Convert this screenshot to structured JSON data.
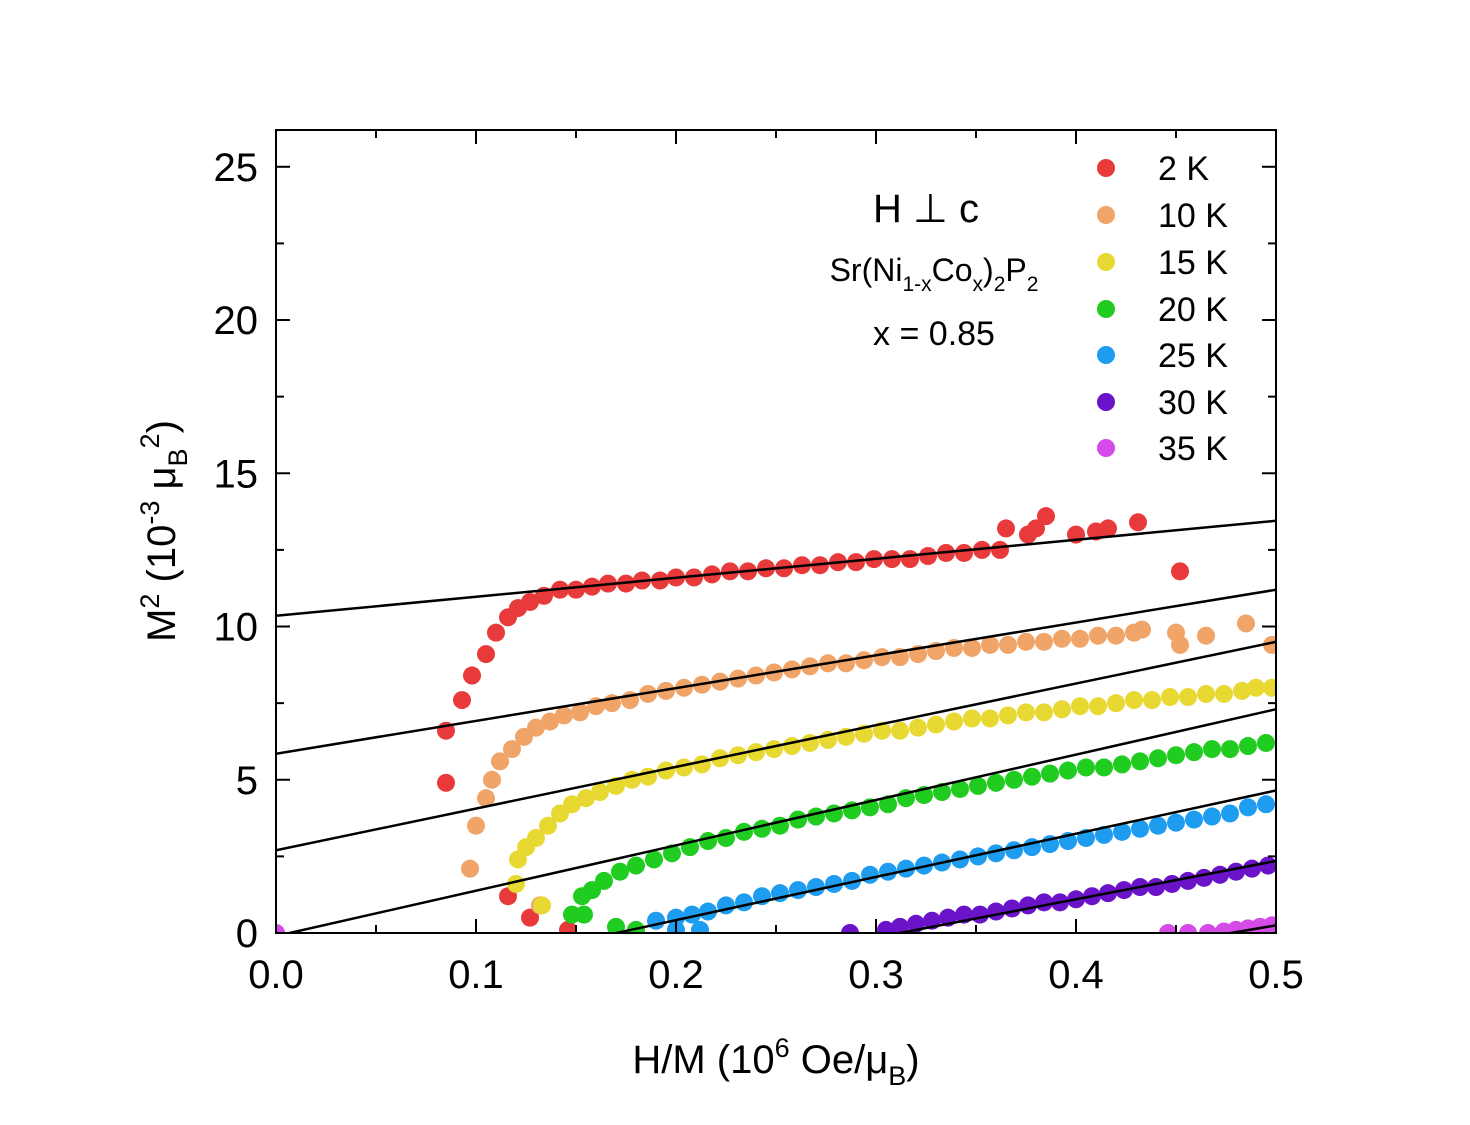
{
  "chart_data": {
    "type": "scatter",
    "title": "",
    "xlabel": {
      "main": "H/M (10",
      "sup": "6",
      "mid": " Oe/μ",
      "sub": "B",
      "end": ")"
    },
    "ylabel": {
      "pre": "M",
      "sup1": "2",
      "mid": " (10",
      "sup2": "-3",
      "mu": " μ",
      "sub": "B",
      "sup3": "2",
      "end": ")"
    },
    "xlim": [
      0,
      0.5
    ],
    "ylim": [
      0,
      26.2
    ],
    "xticks": [
      0.0,
      0.1,
      0.2,
      0.3,
      0.4,
      0.5
    ],
    "xtick_labels": [
      "0.0",
      "0.1",
      "0.2",
      "0.3",
      "0.4",
      "0.5"
    ],
    "yticks": [
      0,
      5,
      10,
      15,
      20,
      25
    ],
    "ytick_labels": [
      "0",
      "5",
      "10",
      "15",
      "20",
      "25"
    ],
    "annotations": {
      "field": "H ⊥ c",
      "compound": {
        "a": "Sr(Ni",
        "b": "1-x",
        "c": "Co",
        "d": "x",
        "e": ")",
        "f": "2",
        "g": "P",
        "h": "2"
      },
      "doping": "x = 0.85"
    },
    "legend_position": "top-right",
    "series": [
      {
        "name": "2 K",
        "color": "#e83a3a",
        "x": [
          0.085,
          0.085,
          0.093,
          0.098,
          0.105,
          0.11,
          0.116,
          0.121,
          0.127,
          0.134,
          0.142,
          0.15,
          0.158,
          0.166,
          0.175,
          0.183,
          0.192,
          0.2,
          0.209,
          0.218,
          0.227,
          0.236,
          0.245,
          0.254,
          0.263,
          0.272,
          0.281,
          0.29,
          0.299,
          0.308,
          0.317,
          0.326,
          0.335,
          0.344,
          0.353,
          0.362,
          0.365,
          0.376,
          0.38,
          0.385,
          0.4,
          0.41,
          0.416,
          0.431,
          0.452,
          0.116,
          0.127,
          0.146
        ],
        "y": [
          4.9,
          6.6,
          7.6,
          8.4,
          9.1,
          9.8,
          10.3,
          10.6,
          10.8,
          11.0,
          11.2,
          11.2,
          11.3,
          11.4,
          11.4,
          11.5,
          11.5,
          11.6,
          11.6,
          11.7,
          11.8,
          11.8,
          11.9,
          11.9,
          12.0,
          12.0,
          12.1,
          12.1,
          12.2,
          12.2,
          12.2,
          12.3,
          12.4,
          12.4,
          12.5,
          12.5,
          13.2,
          13.0,
          13.2,
          13.6,
          13.0,
          13.1,
          13.2,
          13.4,
          11.8,
          1.2,
          0.5,
          0.1
        ],
        "fit": [
          10.35,
          6.2
        ]
      },
      {
        "name": "10 K",
        "color": "#f0a468",
        "x": [
          0.1,
          0.105,
          0.108,
          0.112,
          0.118,
          0.124,
          0.13,
          0.137,
          0.144,
          0.152,
          0.16,
          0.168,
          0.177,
          0.186,
          0.195,
          0.204,
          0.213,
          0.222,
          0.231,
          0.24,
          0.249,
          0.258,
          0.267,
          0.276,
          0.285,
          0.294,
          0.303,
          0.312,
          0.321,
          0.33,
          0.339,
          0.348,
          0.357,
          0.366,
          0.375,
          0.384,
          0.393,
          0.402,
          0.411,
          0.42,
          0.429,
          0.433,
          0.45,
          0.452,
          0.465,
          0.485,
          0.498,
          0.097,
          0.132
        ],
        "y": [
          3.5,
          4.4,
          5.0,
          5.6,
          6.0,
          6.4,
          6.7,
          6.9,
          7.1,
          7.2,
          7.4,
          7.5,
          7.6,
          7.8,
          7.9,
          8.0,
          8.1,
          8.2,
          8.3,
          8.4,
          8.5,
          8.6,
          8.7,
          8.8,
          8.8,
          8.9,
          9.0,
          9.0,
          9.1,
          9.2,
          9.3,
          9.3,
          9.4,
          9.4,
          9.5,
          9.5,
          9.6,
          9.6,
          9.7,
          9.7,
          9.8,
          9.9,
          9.8,
          9.4,
          9.7,
          10.1,
          9.4,
          2.1,
          0.9
        ],
        "fit": [
          5.85,
          10.7
        ]
      },
      {
        "name": "15 K",
        "color": "#e8d832",
        "x": [
          0.121,
          0.125,
          0.13,
          0.136,
          0.142,
          0.148,
          0.155,
          0.162,
          0.17,
          0.178,
          0.186,
          0.195,
          0.204,
          0.213,
          0.222,
          0.231,
          0.24,
          0.249,
          0.258,
          0.267,
          0.276,
          0.285,
          0.294,
          0.303,
          0.312,
          0.321,
          0.33,
          0.339,
          0.348,
          0.357,
          0.366,
          0.375,
          0.384,
          0.393,
          0.402,
          0.411,
          0.42,
          0.429,
          0.438,
          0.447,
          0.456,
          0.465,
          0.474,
          0.483,
          0.49,
          0.498,
          0.12,
          0.133
        ],
        "y": [
          2.4,
          2.8,
          3.1,
          3.5,
          3.9,
          4.2,
          4.4,
          4.6,
          4.8,
          5.0,
          5.1,
          5.3,
          5.4,
          5.5,
          5.7,
          5.8,
          5.9,
          6.0,
          6.1,
          6.2,
          6.3,
          6.4,
          6.5,
          6.6,
          6.6,
          6.7,
          6.8,
          6.9,
          7.0,
          7.0,
          7.1,
          7.2,
          7.2,
          7.3,
          7.4,
          7.4,
          7.5,
          7.6,
          7.6,
          7.7,
          7.7,
          7.8,
          7.8,
          7.9,
          8.0,
          8.0,
          1.6,
          0.9
        ],
        "fit": [
          2.7,
          13.6
        ]
      },
      {
        "name": "20 K",
        "color": "#1fcc1f",
        "x": [
          0.148,
          0.153,
          0.158,
          0.164,
          0.172,
          0.18,
          0.189,
          0.198,
          0.207,
          0.216,
          0.225,
          0.234,
          0.243,
          0.252,
          0.261,
          0.27,
          0.279,
          0.288,
          0.297,
          0.306,
          0.315,
          0.324,
          0.333,
          0.342,
          0.351,
          0.36,
          0.369,
          0.378,
          0.387,
          0.396,
          0.405,
          0.414,
          0.423,
          0.432,
          0.441,
          0.45,
          0.459,
          0.468,
          0.477,
          0.486,
          0.495,
          0.154,
          0.17,
          0.18
        ],
        "y": [
          0.6,
          1.2,
          1.4,
          1.7,
          2.0,
          2.2,
          2.4,
          2.6,
          2.8,
          3.0,
          3.1,
          3.3,
          3.4,
          3.5,
          3.7,
          3.8,
          3.9,
          4.0,
          4.1,
          4.2,
          4.4,
          4.5,
          4.6,
          4.7,
          4.8,
          4.9,
          5.0,
          5.1,
          5.2,
          5.3,
          5.4,
          5.4,
          5.5,
          5.6,
          5.7,
          5.8,
          5.9,
          6.0,
          6.0,
          6.1,
          6.2,
          0.6,
          0.2,
          0.1
        ],
        "fit": [
          -0.1,
          14.8
        ]
      },
      {
        "name": "25 K",
        "color": "#1d9cf0",
        "x": [
          0.19,
          0.2,
          0.208,
          0.216,
          0.225,
          0.234,
          0.243,
          0.252,
          0.261,
          0.27,
          0.279,
          0.288,
          0.297,
          0.306,
          0.315,
          0.324,
          0.333,
          0.342,
          0.351,
          0.36,
          0.369,
          0.378,
          0.387,
          0.396,
          0.405,
          0.414,
          0.423,
          0.432,
          0.441,
          0.45,
          0.459,
          0.468,
          0.477,
          0.486,
          0.495,
          0.212,
          0.2
        ],
        "y": [
          0.4,
          0.5,
          0.6,
          0.7,
          0.9,
          1.0,
          1.2,
          1.3,
          1.4,
          1.5,
          1.6,
          1.7,
          1.9,
          2.0,
          2.1,
          2.2,
          2.3,
          2.4,
          2.5,
          2.6,
          2.7,
          2.8,
          2.9,
          3.0,
          3.1,
          3.2,
          3.3,
          3.4,
          3.5,
          3.6,
          3.7,
          3.8,
          3.9,
          4.1,
          4.2,
          0.1,
          0.1
        ],
        "fit": [
          -2.4,
          14.1
        ]
      },
      {
        "name": "30 K",
        "color": "#6a13c9",
        "x": [
          0.287,
          0.305,
          0.312,
          0.32,
          0.328,
          0.336,
          0.344,
          0.352,
          0.36,
          0.368,
          0.376,
          0.384,
          0.392,
          0.4,
          0.408,
          0.416,
          0.424,
          0.432,
          0.44,
          0.448,
          0.456,
          0.464,
          0.472,
          0.48,
          0.488,
          0.496
        ],
        "y": [
          0.0,
          0.1,
          0.2,
          0.3,
          0.4,
          0.5,
          0.6,
          0.6,
          0.7,
          0.8,
          0.9,
          1.0,
          1.0,
          1.1,
          1.2,
          1.3,
          1.4,
          1.5,
          1.5,
          1.6,
          1.7,
          1.8,
          1.9,
          2.0,
          2.1,
          2.2
        ],
        "fit": [
          -3.9,
          12.5
        ]
      },
      {
        "name": "35 K",
        "color": "#d54be8",
        "x": [
          0.0,
          0.446,
          0.456,
          0.466,
          0.474,
          0.48,
          0.486,
          0.492,
          0.498
        ],
        "y": [
          0.0,
          0.0,
          0.0,
          0.0,
          0.05,
          0.1,
          0.15,
          0.2,
          0.25
        ],
        "fit": [
          -5.3,
          11.1
        ]
      }
    ]
  }
}
